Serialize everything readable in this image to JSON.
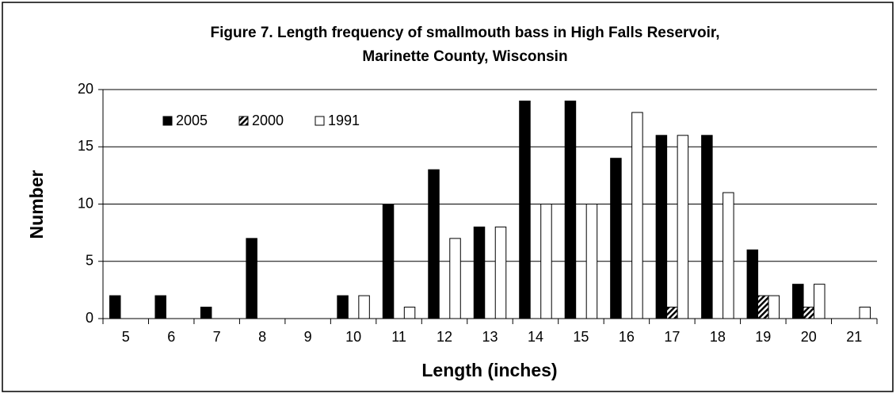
{
  "chart_data": {
    "type": "bar",
    "title": [
      "Figure 7. Length frequency of smallmouth bass in High Falls Reservoir,",
      "Marinette County, Wisconsin"
    ],
    "x_label": "Length (inches)",
    "y_label": "Number",
    "categories": [
      "5",
      "6",
      "7",
      "8",
      "9",
      "10",
      "11",
      "12",
      "13",
      "14",
      "15",
      "16",
      "17",
      "18",
      "19",
      "20",
      "21"
    ],
    "series": [
      {
        "name": "2005",
        "color": "#000000",
        "values": [
          2,
          2,
          1,
          7,
          0,
          2,
          10,
          13,
          8,
          19,
          19,
          14,
          16,
          16,
          6,
          3,
          0
        ]
      },
      {
        "name": "2000",
        "color": "#000000",
        "hatch": true,
        "values": [
          0,
          0,
          0,
          0,
          0,
          0,
          0,
          0,
          0,
          0,
          0,
          0,
          1,
          0,
          2,
          1,
          0
        ]
      },
      {
        "name": "1991",
        "color": "#ffffff",
        "values": [
          0,
          0,
          0,
          0,
          0,
          2,
          1,
          7,
          8,
          10,
          10,
          18,
          16,
          11,
          2,
          3,
          1
        ]
      }
    ],
    "ylim": [
      0,
      20
    ],
    "yticks": [
      0,
      5,
      10,
      15,
      20
    ],
    "grid": true,
    "legend": "upper left"
  }
}
